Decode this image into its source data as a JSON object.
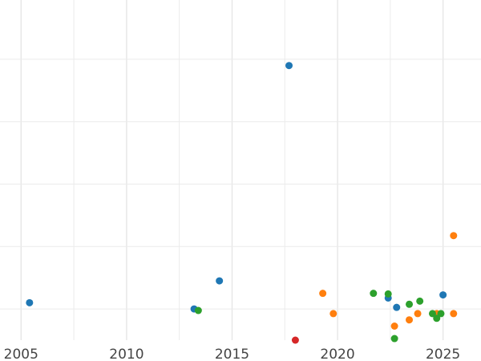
{
  "chart_data": {
    "type": "scatter",
    "title": "",
    "xlabel": "",
    "ylabel": "",
    "grid": true,
    "legend": "none",
    "xlim": [
      2004.0,
      2026.8
    ],
    "ylim": [
      0,
      10.9
    ],
    "x_ticks": [
      2005,
      2010,
      2015,
      2020,
      2025
    ],
    "x_tick_labels": [
      "2005",
      "2010",
      "2015",
      "2020",
      "2025"
    ],
    "y_ticks": [
      1,
      3,
      5,
      7,
      9,
      11
    ],
    "series": [
      {
        "color": "#1f77b4",
        "points": [
          [
            2005.4,
            1.2
          ],
          [
            2013.2,
            1.0
          ],
          [
            2014.4,
            1.9
          ],
          [
            2017.7,
            8.8
          ],
          [
            2022.4,
            1.35
          ],
          [
            2022.8,
            1.05
          ],
          [
            2025.0,
            1.45
          ]
        ]
      },
      {
        "color": "#ff7f0e",
        "points": [
          [
            2019.3,
            1.5
          ],
          [
            2019.8,
            0.85
          ],
          [
            2022.7,
            0.45
          ],
          [
            2023.4,
            0.65
          ],
          [
            2023.8,
            0.85
          ],
          [
            2024.7,
            0.85
          ],
          [
            2025.5,
            0.85
          ],
          [
            2025.5,
            3.35
          ]
        ]
      },
      {
        "color": "#2ca02c",
        "points": [
          [
            2013.4,
            0.95
          ],
          [
            2021.7,
            1.5
          ],
          [
            2022.4,
            1.48
          ],
          [
            2022.7,
            0.05
          ],
          [
            2023.4,
            1.15
          ],
          [
            2023.9,
            1.25
          ],
          [
            2024.5,
            0.85
          ],
          [
            2024.7,
            0.7
          ],
          [
            2024.9,
            0.85
          ]
        ]
      },
      {
        "color": "#d62728",
        "points": [
          [
            2018.0,
            0.0
          ]
        ]
      }
    ]
  }
}
